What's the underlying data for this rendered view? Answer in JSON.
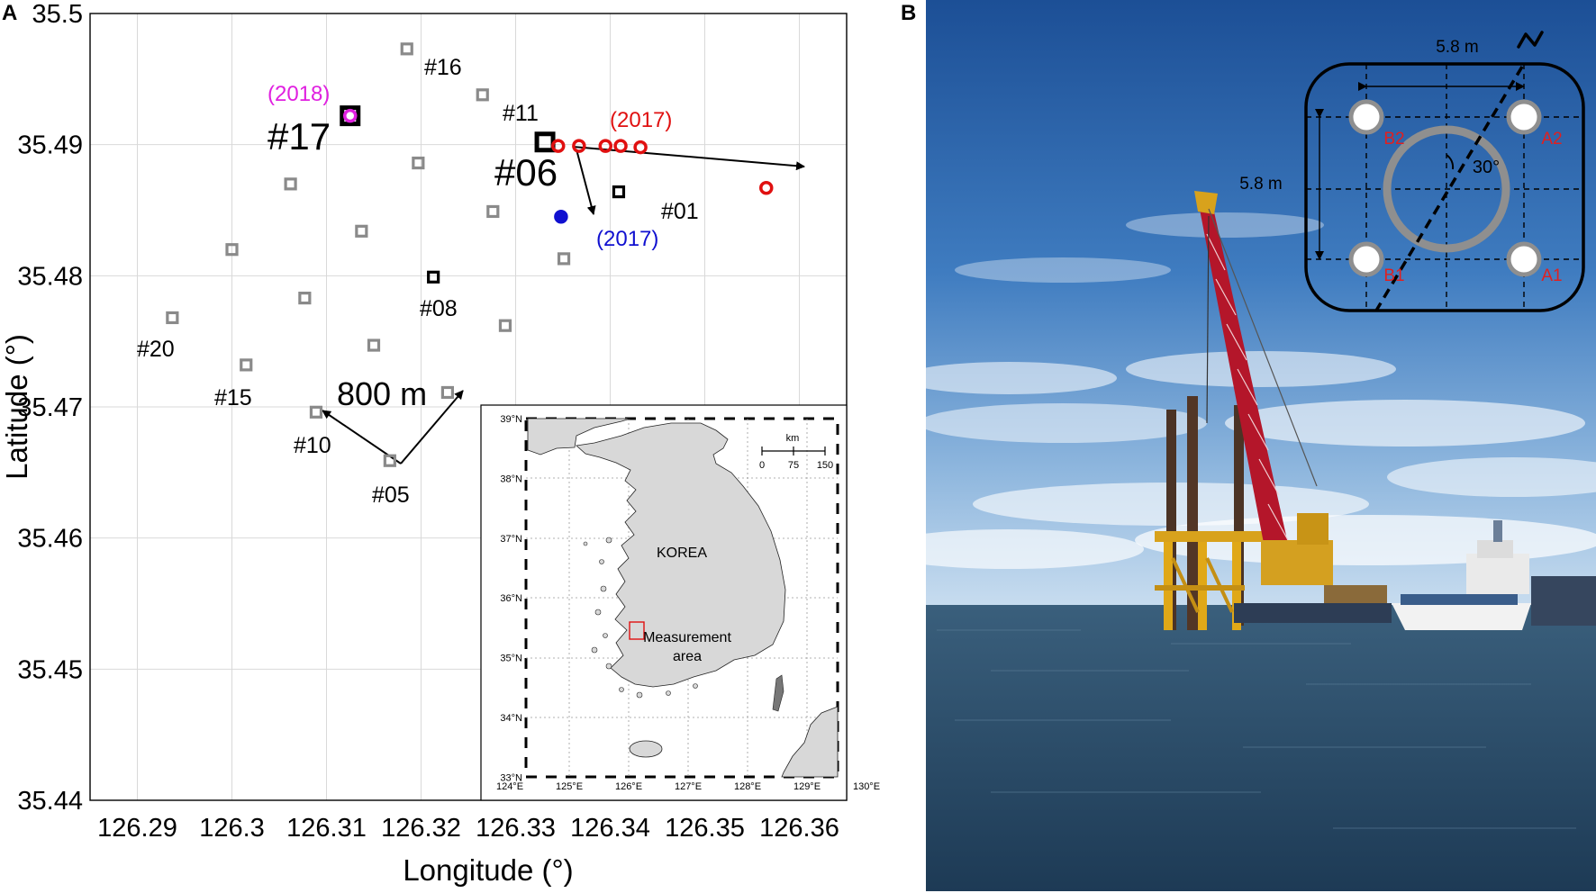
{
  "panel_a": {
    "label": "A",
    "chart_data": {
      "type": "scatter",
      "xlabel": "Longitude (°)",
      "ylabel": "Latitude (°)",
      "xlim": [
        126.285,
        126.365
      ],
      "ylim": [
        35.44,
        35.5
      ],
      "x_ticks": [
        126.29,
        126.3,
        126.31,
        126.32,
        126.33,
        126.34,
        126.35,
        126.36
      ],
      "x_tick_labels": [
        "126.29",
        "126.3",
        "126.31",
        "126.32",
        "126.33",
        "126.34",
        "126.35",
        "126.36"
      ],
      "y_ticks": [
        35.44,
        35.45,
        35.46,
        35.47,
        35.48,
        35.49,
        35.5
      ],
      "y_tick_labels": [
        "35.44",
        "35.45",
        "35.46",
        "35.47",
        "35.48",
        "35.49",
        "35.5"
      ],
      "grid": true,
      "series": [
        {
          "color": "#8a8a8a",
          "marker": "square",
          "points": [
            {
              "x": 126.3185,
              "y": 35.4973,
              "label": "#16"
            },
            {
              "x": 126.3265,
              "y": 35.4938,
              "label": "#11"
            },
            {
              "x": 126.3197,
              "y": 35.4886
            },
            {
              "x": 126.3062,
              "y": 35.487
            },
            {
              "x": 126.3276,
              "y": 35.4849
            },
            {
              "x": 126.3137,
              "y": 35.4834
            },
            {
              "x": 126.3,
              "y": 35.482
            },
            {
              "x": 126.3351,
              "y": 35.4813
            },
            {
              "x": 126.3077,
              "y": 35.4783
            },
            {
              "x": 126.2937,
              "y": 35.4768,
              "label": "#20"
            },
            {
              "x": 126.3289,
              "y": 35.4762
            },
            {
              "x": 126.315,
              "y": 35.4747
            },
            {
              "x": 126.3015,
              "y": 35.4732,
              "label": "#15"
            },
            {
              "x": 126.3228,
              "y": 35.4711
            },
            {
              "x": 126.3089,
              "y": 35.4696,
              "label": "#10"
            },
            {
              "x": 126.3167,
              "y": 35.4659,
              "label": "#05"
            }
          ]
        },
        {
          "color": "#000000",
          "marker": "square",
          "points": [
            {
              "x": 126.3125,
              "y": 35.4922,
              "label": "#17"
            },
            {
              "x": 126.3331,
              "y": 35.4902,
              "label": "#06"
            },
            {
              "x": 126.3409,
              "y": 35.4864,
              "label": "#01"
            },
            {
              "x": 126.3213,
              "y": 35.4799,
              "label": "#08"
            }
          ]
        },
        {
          "name": "(2018)",
          "color": "#e020e0",
          "marker": "circle",
          "points": [
            {
              "x": 126.3125,
              "y": 35.4922
            }
          ]
        },
        {
          "name": "(2017)",
          "color": "#e01010",
          "marker": "circle",
          "points": [
            {
              "x": 126.3345,
              "y": 35.4899
            },
            {
              "x": 126.3367,
              "y": 35.4899
            },
            {
              "x": 126.3395,
              "y": 35.4899
            },
            {
              "x": 126.3411,
              "y": 35.4899
            },
            {
              "x": 126.3432,
              "y": 35.4898
            },
            {
              "x": 126.3565,
              "y": 35.4867
            }
          ]
        },
        {
          "name": "(2017)",
          "color": "#1010d0",
          "marker": "circle",
          "points": [
            {
              "x": 126.3348,
              "y": 35.4845
            }
          ]
        }
      ],
      "annotations": [
        {
          "text": "800 m"
        },
        {
          "text": "#16"
        },
        {
          "text": "#11"
        },
        {
          "text": "#17"
        },
        {
          "text": "#06"
        },
        {
          "text": "#01"
        },
        {
          "text": "#08"
        },
        {
          "text": "#20"
        },
        {
          "text": "#15"
        },
        {
          "text": "#10"
        },
        {
          "text": "#05"
        }
      ]
    },
    "inset": {
      "lat_labels": [
        "39°N",
        "38°N",
        "37°N",
        "36°N",
        "35°N",
        "34°N",
        "33°N"
      ],
      "lon_labels": [
        "124°E",
        "125°E",
        "126°E",
        "127°E",
        "128°E",
        "129°E",
        "130°E"
      ],
      "scale_unit": "km",
      "scale_ticks": [
        "0",
        "75",
        "150"
      ],
      "country": "KOREA",
      "area_label_1": "Measurement",
      "area_label_2": "area"
    }
  },
  "panel_b": {
    "label": "B",
    "dimension_top": "5.8 m",
    "dimension_left": "5.8 m",
    "angle": "30°",
    "piles": [
      "B2",
      "A2",
      "B1",
      "A1"
    ],
    "north_mark": "N"
  },
  "colors": {
    "gray_marker": "#8a8a8a",
    "magenta": "#e020e0",
    "red": "#e01010",
    "blue": "#1010d0",
    "sky_top": "#1f5aa0",
    "sea": "#2a4d6a",
    "pile_label": "#e02020"
  }
}
